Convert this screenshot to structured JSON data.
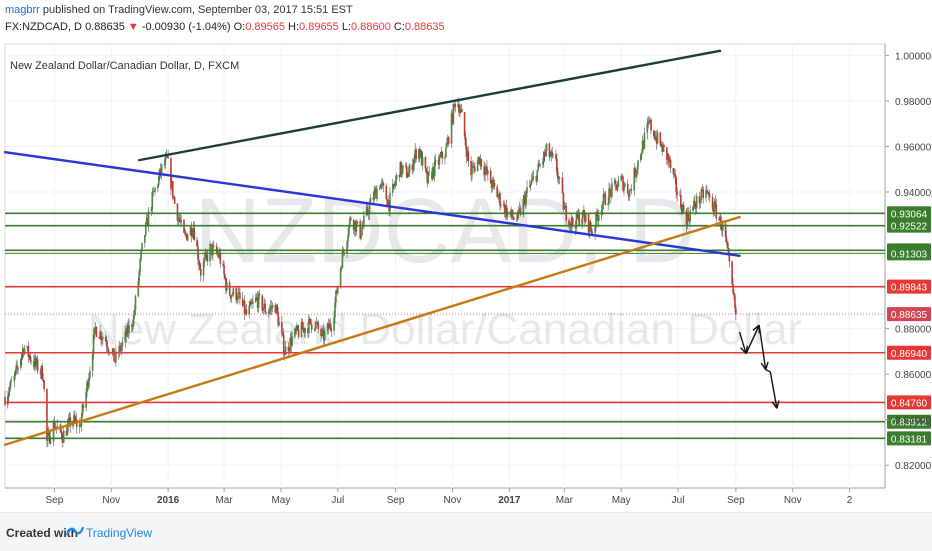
{
  "header": {
    "username": "magbrr",
    "published_text": "published on TradingView.com, September 03, 2017 15:51 EST",
    "symbol": "FX:NZDCAD, D",
    "last": "0.88635",
    "change": "-0.00930 (-1.04%)",
    "o_label": "O:",
    "o_value": "0.89565",
    "h_label": "H:",
    "h_value": "0.89655",
    "l_label": "L:",
    "l_value": "0.88600",
    "c_label": "C:",
    "c_value": "0.88635"
  },
  "footer": {
    "created_with": "Created with",
    "brand": "TradingView"
  },
  "colors": {
    "up": "#4a8a3a",
    "down": "#c0392b",
    "support_green": "#3a7d2c",
    "resistance_red": "#e53935",
    "blue_line": "#2a35d8",
    "orange_line": "#c47a14",
    "dark_line": "#1d3b3a"
  },
  "chart_data": {
    "type": "candlestick",
    "title": "New Zealand Dollar/Canadian Dollar, D, FXCM",
    "watermark_symbol": "NZDCAD, D",
    "watermark_name": "New Zealand Dollar/Canadian Dollar",
    "ylim": [
      0.81,
      1.005
    ],
    "xlim": [
      "2015-07-10",
      "2018-02-08"
    ],
    "y_ticks": [
      "1.00000",
      "0.98000",
      "0.96000",
      "0.94000",
      "0.88000",
      "0.86000",
      "0.84000",
      "0.82000"
    ],
    "x_ticks": [
      {
        "label": "Sep",
        "date": "2015-09-01"
      },
      {
        "label": "Nov",
        "date": "2015-11-01"
      },
      {
        "label": "2016",
        "date": "2016-01-01",
        "bold": true
      },
      {
        "label": "Mar",
        "date": "2016-03-01"
      },
      {
        "label": "May",
        "date": "2016-05-01"
      },
      {
        "label": "Jul",
        "date": "2016-07-01"
      },
      {
        "label": "Sep",
        "date": "2016-09-01"
      },
      {
        "label": "Nov",
        "date": "2016-11-01"
      },
      {
        "label": "2017",
        "date": "2017-01-01",
        "bold": true
      },
      {
        "label": "Mar",
        "date": "2017-03-01"
      },
      {
        "label": "May",
        "date": "2017-05-01"
      },
      {
        "label": "Jul",
        "date": "2017-07-01"
      },
      {
        "label": "Sep",
        "date": "2017-09-01"
      },
      {
        "label": "Nov",
        "date": "2017-11-01"
      },
      {
        "label": "2",
        "date": "2018-01-01"
      }
    ],
    "horizontal_levels": [
      {
        "value": 0.93064,
        "label": "0.93064",
        "kind": "green"
      },
      {
        "value": 0.92522,
        "label": "0.92522",
        "kind": "green"
      },
      {
        "value": 0.91438,
        "label": "0.91438",
        "kind": "green"
      },
      {
        "value": 0.91303,
        "label": "0.91303",
        "kind": "green-thin"
      },
      {
        "value": 0.89843,
        "label": "0.89843",
        "kind": "red"
      },
      {
        "value": 0.88635,
        "label": "0.88635",
        "kind": "current"
      },
      {
        "value": 0.8694,
        "label": "0.86940",
        "kind": "red"
      },
      {
        "value": 0.8476,
        "label": "0.84760",
        "kind": "red"
      },
      {
        "value": 0.83912,
        "label": "0.83912",
        "kind": "green"
      },
      {
        "value": 0.83181,
        "label": "0.83181",
        "kind": "green"
      }
    ],
    "trendlines": [
      {
        "name": "upper-channel",
        "kind": "dark",
        "from": {
          "date": "2015-12-01",
          "value": 0.954
        },
        "to": {
          "date": "2017-08-15",
          "value": 1.002
        }
      },
      {
        "name": "blue-descending",
        "kind": "blue",
        "from": {
          "date": "2015-07-10",
          "value": 0.9575
        },
        "to": {
          "date": "2017-09-05",
          "value": 0.912
        }
      },
      {
        "name": "orange-ascending",
        "kind": "orange",
        "from": {
          "date": "2015-07-10",
          "value": 0.829
        },
        "to": {
          "date": "2017-09-05",
          "value": 0.929
        }
      }
    ],
    "projection": [
      {
        "date": "2017-09-05",
        "value": 0.8785
      },
      {
        "date": "2017-09-12",
        "value": 0.869
      },
      {
        "date": "2017-09-26",
        "value": 0.8815
      },
      {
        "date": "2017-10-03",
        "value": 0.862
      },
      {
        "date": "2017-10-08",
        "value": 0.861
      },
      {
        "date": "2017-10-15",
        "value": 0.845
      }
    ],
    "price_path": [
      [
        "2015-07-10",
        0.85
      ],
      [
        "2015-07-20",
        0.858
      ],
      [
        "2015-07-30",
        0.872
      ],
      [
        "2015-08-10",
        0.865
      ],
      [
        "2015-08-20",
        0.86
      ],
      [
        "2015-08-24",
        0.83
      ],
      [
        "2015-09-01",
        0.838
      ],
      [
        "2015-09-10",
        0.833
      ],
      [
        "2015-09-20",
        0.84
      ],
      [
        "2015-09-28",
        0.837
      ],
      [
        "2015-10-05",
        0.852
      ],
      [
        "2015-10-15",
        0.88
      ],
      [
        "2015-10-25",
        0.876
      ],
      [
        "2015-11-05",
        0.866
      ],
      [
        "2015-11-15",
        0.875
      ],
      [
        "2015-11-25",
        0.885
      ],
      [
        "2015-12-05",
        0.918
      ],
      [
        "2015-12-15",
        0.937
      ],
      [
        "2015-12-25",
        0.95
      ],
      [
        "2015-12-31",
        0.954
      ],
      [
        "2016-01-08",
        0.935
      ],
      [
        "2016-01-18",
        0.92
      ],
      [
        "2016-01-28",
        0.925
      ],
      [
        "2016-02-05",
        0.905
      ],
      [
        "2016-02-15",
        0.915
      ],
      [
        "2016-02-25",
        0.912
      ],
      [
        "2016-03-05",
        0.896
      ],
      [
        "2016-03-15",
        0.895
      ],
      [
        "2016-03-25",
        0.886
      ],
      [
        "2016-04-05",
        0.893
      ],
      [
        "2016-04-15",
        0.888
      ],
      [
        "2016-04-25",
        0.89
      ],
      [
        "2016-05-05",
        0.87
      ],
      [
        "2016-05-15",
        0.877
      ],
      [
        "2016-05-25",
        0.88
      ],
      [
        "2016-06-05",
        0.883
      ],
      [
        "2016-06-15",
        0.876
      ],
      [
        "2016-06-25",
        0.883
      ],
      [
        "2016-07-05",
        0.91
      ],
      [
        "2016-07-15",
        0.929
      ],
      [
        "2016-07-25",
        0.922
      ],
      [
        "2016-08-05",
        0.935
      ],
      [
        "2016-08-15",
        0.944
      ],
      [
        "2016-08-25",
        0.935
      ],
      [
        "2016-09-05",
        0.95
      ],
      [
        "2016-09-15",
        0.948
      ],
      [
        "2016-09-25",
        0.96
      ],
      [
        "2016-10-05",
        0.945
      ],
      [
        "2016-10-15",
        0.952
      ],
      [
        "2016-10-25",
        0.958
      ],
      [
        "2016-11-05",
        0.982
      ],
      [
        "2016-11-10",
        0.975
      ],
      [
        "2016-11-20",
        0.948
      ],
      [
        "2016-11-30",
        0.955
      ],
      [
        "2016-12-10",
        0.946
      ],
      [
        "2016-12-20",
        0.938
      ],
      [
        "2016-12-31",
        0.93
      ],
      [
        "2017-01-10",
        0.928
      ],
      [
        "2017-01-20",
        0.94
      ],
      [
        "2017-01-30",
        0.948
      ],
      [
        "2017-02-10",
        0.958
      ],
      [
        "2017-02-20",
        0.952
      ],
      [
        "2017-03-01",
        0.932
      ],
      [
        "2017-03-10",
        0.926
      ],
      [
        "2017-03-20",
        0.93
      ],
      [
        "2017-03-31",
        0.923
      ],
      [
        "2017-04-10",
        0.935
      ],
      [
        "2017-04-20",
        0.94
      ],
      [
        "2017-05-01",
        0.945
      ],
      [
        "2017-05-10",
        0.94
      ],
      [
        "2017-05-20",
        0.955
      ],
      [
        "2017-05-31",
        0.97
      ],
      [
        "2017-06-10",
        0.962
      ],
      [
        "2017-06-20",
        0.955
      ],
      [
        "2017-06-30",
        0.94
      ],
      [
        "2017-07-10",
        0.928
      ],
      [
        "2017-07-20",
        0.935
      ],
      [
        "2017-07-31",
        0.94
      ],
      [
        "2017-08-10",
        0.932
      ],
      [
        "2017-08-20",
        0.922
      ],
      [
        "2017-08-27",
        0.9
      ],
      [
        "2017-09-01",
        0.8864
      ]
    ]
  }
}
